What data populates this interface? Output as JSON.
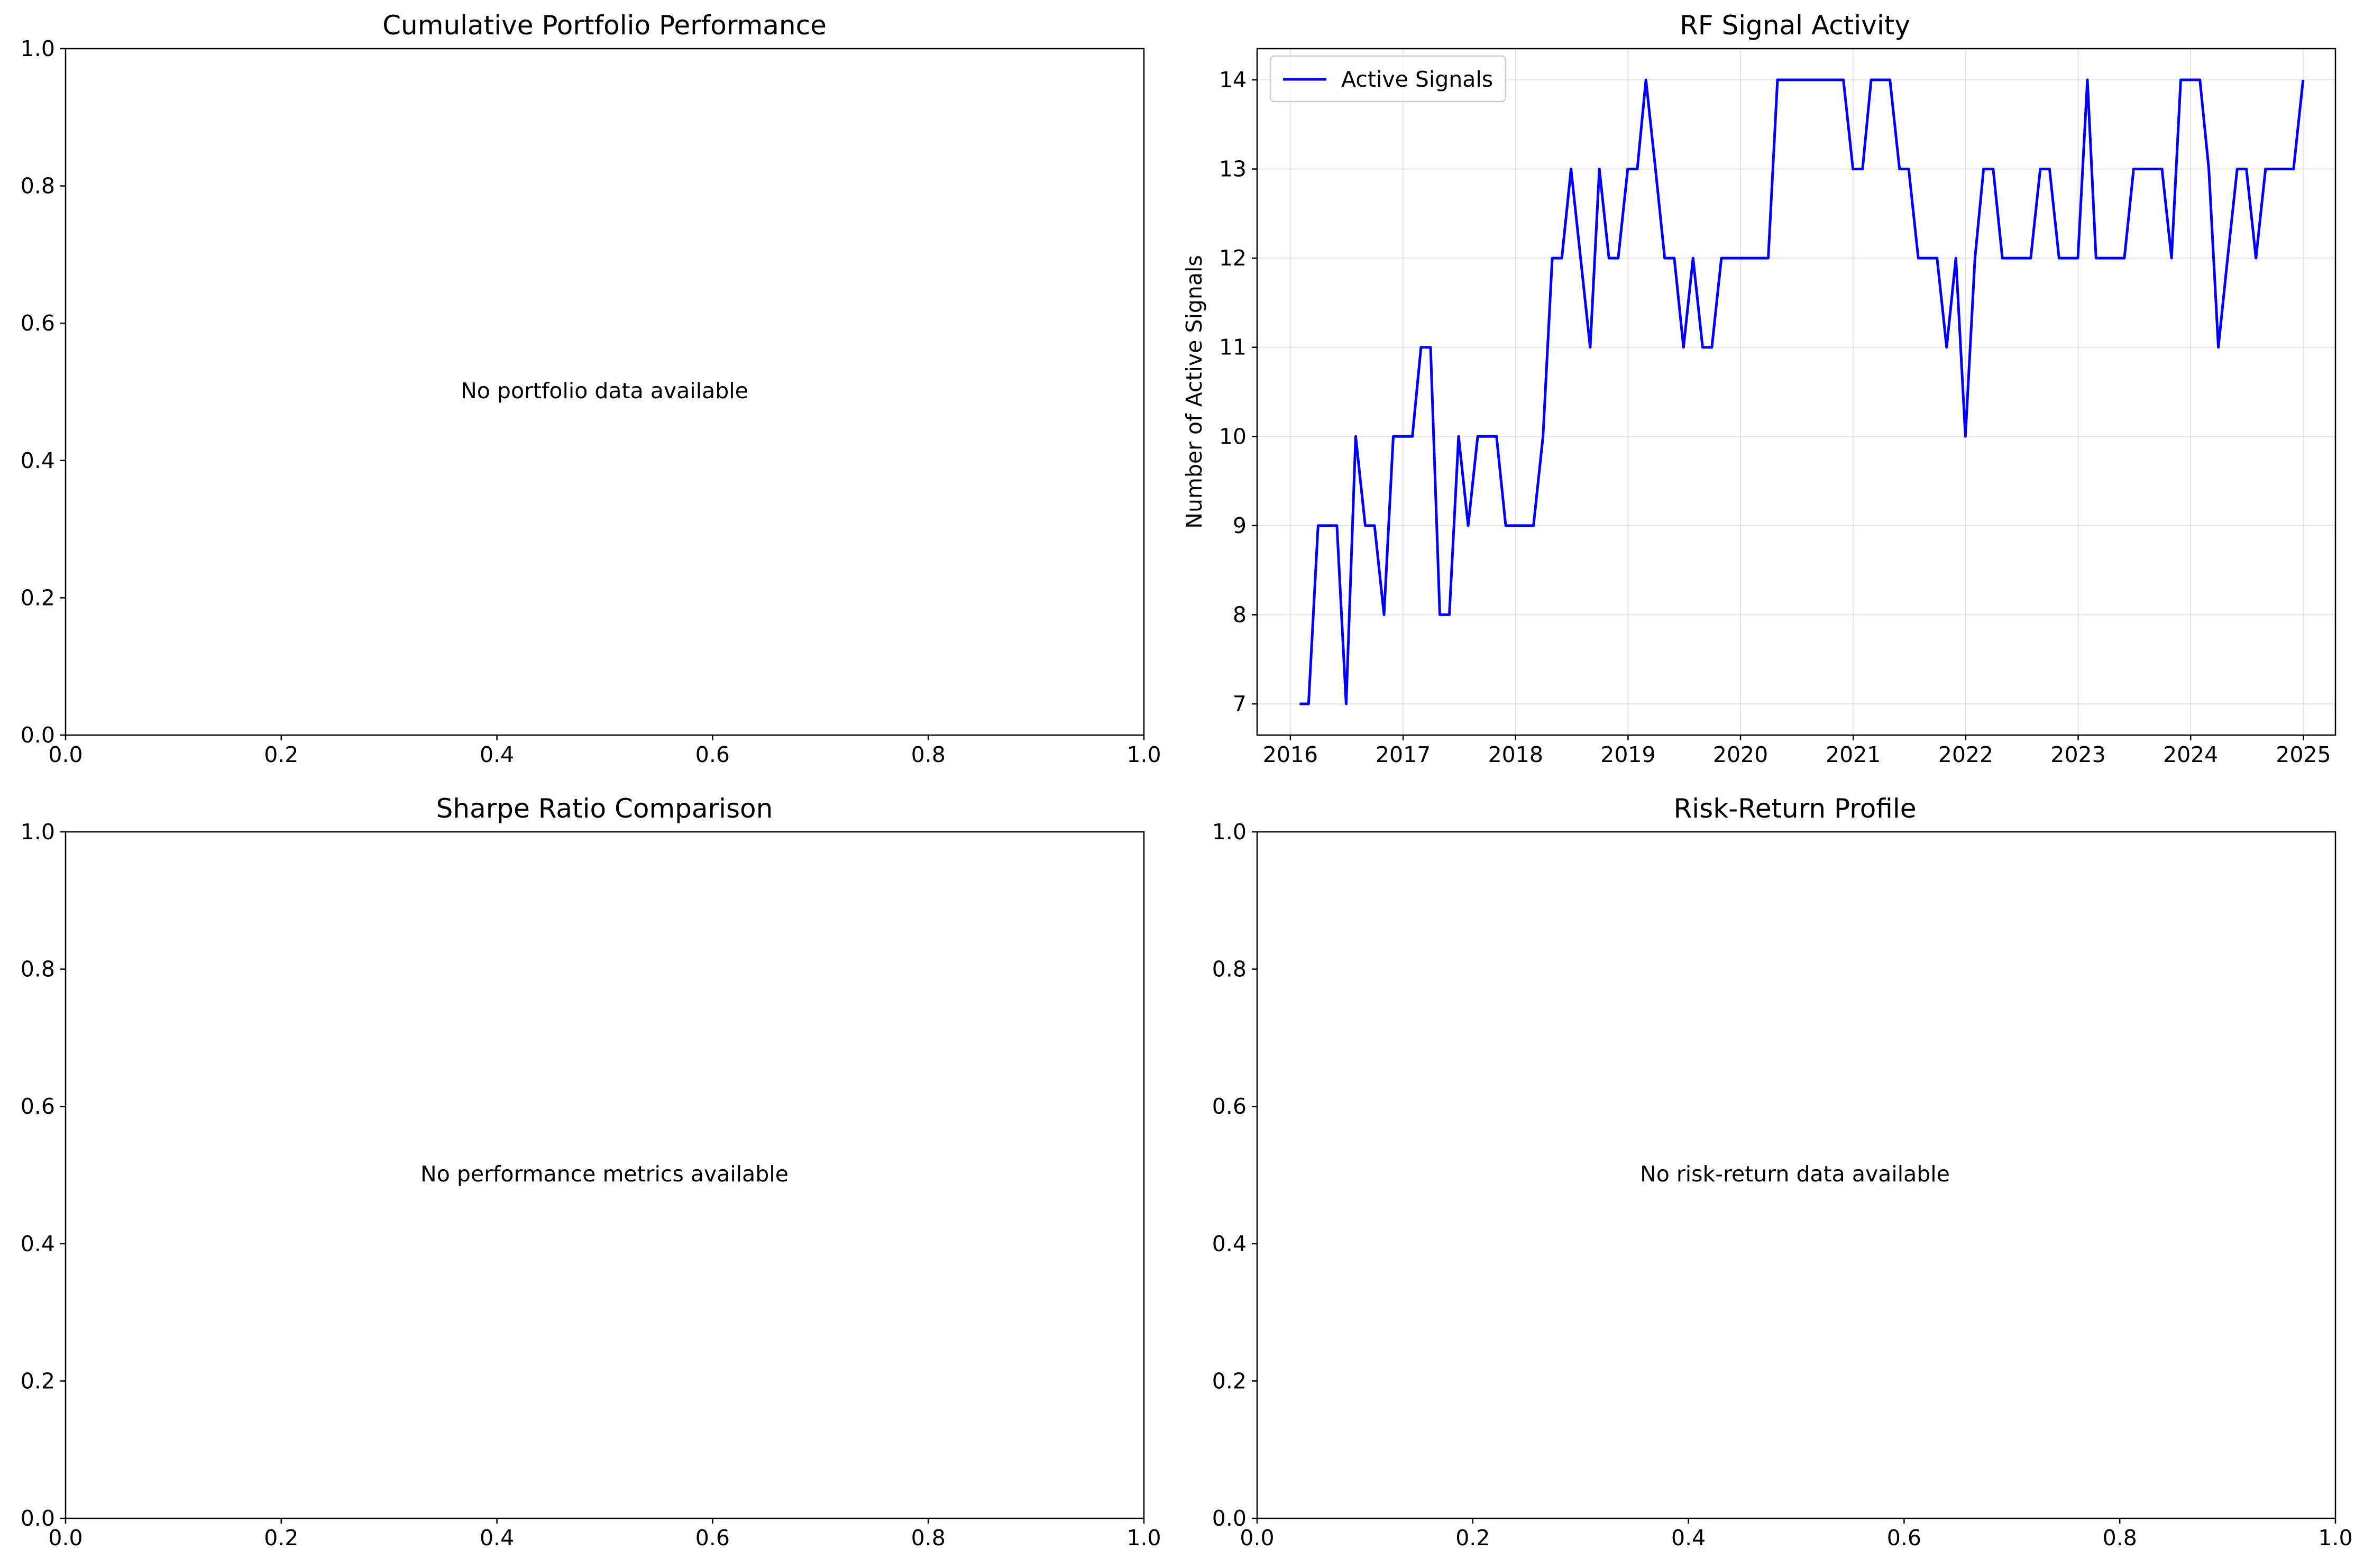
{
  "figure": {
    "panels": {
      "portfolio": {
        "title": "Cumulative Portfolio Performance",
        "message": "No portfolio data available",
        "xticks": [
          "0.0",
          "0.2",
          "0.4",
          "0.6",
          "0.8",
          "1.0"
        ],
        "yticks": [
          "0.0",
          "0.2",
          "0.4",
          "0.6",
          "0.8",
          "1.0"
        ]
      },
      "sharpe": {
        "title": "Sharpe Ratio Comparison",
        "message": "No performance metrics available",
        "xticks": [
          "0.0",
          "0.2",
          "0.4",
          "0.6",
          "0.8",
          "1.0"
        ],
        "yticks": [
          "0.0",
          "0.2",
          "0.4",
          "0.6",
          "0.8",
          "1.0"
        ]
      },
      "risk_return": {
        "title": "Risk-Return Profile",
        "message": "No risk-return data available",
        "xticks": [
          "0.0",
          "0.2",
          "0.4",
          "0.6",
          "0.8",
          "1.0"
        ],
        "yticks": [
          "0.0",
          "0.2",
          "0.4",
          "0.6",
          "0.8",
          "1.0"
        ]
      }
    }
  },
  "chart_data": {
    "type": "line",
    "title": "RF Signal Activity",
    "xlabel": "",
    "ylabel": "Number of Active Signals",
    "xlim": [
      "2015-09-15",
      "2025-04-15"
    ],
    "ylim": [
      6.65,
      14.35
    ],
    "xticks": [
      "2016",
      "2017",
      "2018",
      "2019",
      "2020",
      "2021",
      "2022",
      "2023",
      "2024",
      "2025"
    ],
    "yticks": [
      7,
      8,
      9,
      10,
      11,
      12,
      13,
      14
    ],
    "grid": true,
    "legend": "top-left",
    "series": [
      {
        "name": "Active Signals",
        "color": "#0000ff",
        "x": [
          "2016-01-31",
          "2016-02-29",
          "2016-03-31",
          "2016-04-30",
          "2016-05-31",
          "2016-06-30",
          "2016-07-31",
          "2016-08-31",
          "2016-09-30",
          "2016-10-31",
          "2016-11-30",
          "2016-12-31",
          "2017-01-31",
          "2017-02-28",
          "2017-03-31",
          "2017-04-30",
          "2017-05-31",
          "2017-06-30",
          "2017-07-31",
          "2017-08-31",
          "2017-09-30",
          "2017-10-31",
          "2017-11-30",
          "2017-12-31",
          "2018-01-31",
          "2018-02-28",
          "2018-03-31",
          "2018-04-30",
          "2018-05-31",
          "2018-06-30",
          "2018-07-31",
          "2018-08-31",
          "2018-09-30",
          "2018-10-31",
          "2018-11-30",
          "2018-12-31",
          "2019-01-31",
          "2019-02-28",
          "2019-03-31",
          "2019-04-30",
          "2019-05-31",
          "2019-06-30",
          "2019-07-31",
          "2019-08-31",
          "2019-09-30",
          "2019-10-31",
          "2019-11-30",
          "2019-12-31",
          "2020-01-31",
          "2020-02-29",
          "2020-03-31",
          "2020-04-30",
          "2020-05-31",
          "2020-06-30",
          "2020-07-31",
          "2020-08-31",
          "2020-09-30",
          "2020-10-31",
          "2020-11-30",
          "2020-12-31",
          "2021-01-31",
          "2021-02-28",
          "2021-03-31",
          "2021-04-30",
          "2021-05-31",
          "2021-06-30",
          "2021-07-31",
          "2021-08-31",
          "2021-09-30",
          "2021-10-31",
          "2021-11-30",
          "2021-12-31",
          "2022-01-31",
          "2022-02-28",
          "2022-03-31",
          "2022-04-30",
          "2022-05-31",
          "2022-06-30",
          "2022-07-31",
          "2022-08-31",
          "2022-09-30",
          "2022-10-31",
          "2022-11-30",
          "2022-12-31",
          "2023-01-31",
          "2023-02-28",
          "2023-03-31",
          "2023-04-30",
          "2023-05-31",
          "2023-06-30",
          "2023-07-31",
          "2023-08-31",
          "2023-09-30",
          "2023-10-31",
          "2023-11-30",
          "2023-12-31",
          "2024-01-31",
          "2024-02-29",
          "2024-03-31",
          "2024-04-30",
          "2024-05-31",
          "2024-06-30",
          "2024-07-31",
          "2024-08-31",
          "2024-09-30",
          "2024-10-31",
          "2024-11-30",
          "2024-12-31"
        ],
        "values": [
          7,
          7,
          9,
          9,
          9,
          7,
          10,
          9,
          9,
          8,
          10,
          10,
          10,
          11,
          11,
          8,
          8,
          10,
          9,
          10,
          10,
          10,
          9,
          9,
          9,
          9,
          10,
          12,
          12,
          13,
          12,
          11,
          13,
          12,
          12,
          13,
          13,
          14,
          13,
          12,
          12,
          11,
          12,
          11,
          11,
          12,
          12,
          12,
          12,
          12,
          12,
          14,
          14,
          14,
          14,
          14,
          14,
          14,
          14,
          13,
          13,
          14,
          14,
          14,
          13,
          13,
          12,
          12,
          12,
          11,
          12,
          10,
          12,
          13,
          13,
          12,
          12,
          12,
          12,
          13,
          13,
          12,
          12,
          12,
          14,
          12,
          12,
          12,
          12,
          13,
          13,
          13,
          13,
          12,
          14,
          14,
          14,
          13,
          11,
          12,
          13,
          13,
          12,
          13,
          13,
          13,
          13,
          14
        ]
      }
    ]
  }
}
